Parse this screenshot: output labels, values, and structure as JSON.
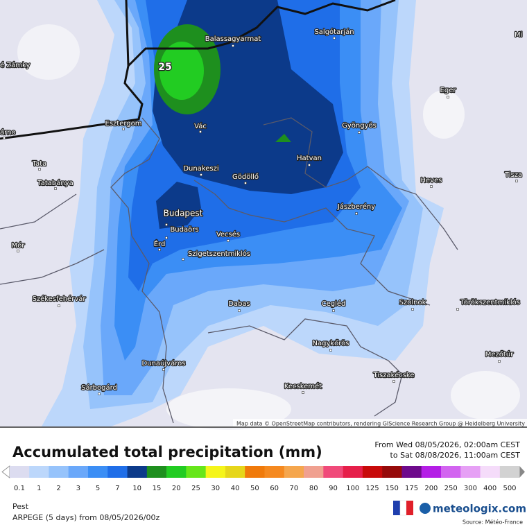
{
  "map": {
    "labels": [
      "é Zámky",
      "árno",
      "Balassagyarmat",
      "Salgótarján",
      "Eger",
      "Gyöngyös",
      "Esztergom",
      "Vác",
      "Hatvan",
      "Dunakeszi",
      "Gödöllő",
      "Tata",
      "Tatabánya",
      "Heves",
      "Jászberény",
      "Budapest",
      "Budaörs",
      "Vecsés",
      "Érd",
      "Szigetszentmiklós",
      "Mór",
      "Székesfehérvár",
      "Dabas",
      "Cegléd",
      "Szolnok",
      "Törökszentmiklós",
      "Nagykőrös",
      "Mezőtúr",
      "Dunaújváros",
      "Tiszakécske",
      "Sárbogárd",
      "Kecskemét",
      "Mi",
      "Tisza"
    ],
    "contour_label": "25",
    "attribution": "Map data © OpenStreetMap contributors, rendering GIScience Research Group @ Heidelberg University"
  },
  "legend": {
    "title": "Accumulated total precipitation (mm)",
    "period": [
      "From Wed 08/05/2026, 02:00am CEST",
      "to Sat 08/08/2026, 11:00am CEST"
    ],
    "ticks": [
      {
        "label": "0.1",
        "color": "#dcdcf0"
      },
      {
        "label": "1",
        "color": "#bcd7fb"
      },
      {
        "label": "2",
        "color": "#96c3fb"
      },
      {
        "label": "3",
        "color": "#6aa8fa"
      },
      {
        "label": "5",
        "color": "#3b8ef5"
      },
      {
        "label": "7",
        "color": "#1f6ee8"
      },
      {
        "label": "10",
        "color": "#0c3a8a"
      },
      {
        "label": "15",
        "color": "#1e8f1e"
      },
      {
        "label": "20",
        "color": "#22cc22"
      },
      {
        "label": "25",
        "color": "#66e61a"
      },
      {
        "label": "30",
        "color": "#f5f51a"
      },
      {
        "label": "40",
        "color": "#e6d61a"
      },
      {
        "label": "50",
        "color": "#f07a0a"
      },
      {
        "label": "60",
        "color": "#f5891f"
      },
      {
        "label": "70",
        "color": "#f5a64d"
      },
      {
        "label": "80",
        "color": "#f0a090"
      },
      {
        "label": "90",
        "color": "#f04a7a"
      },
      {
        "label": "100",
        "color": "#e61f4a"
      },
      {
        "label": "125",
        "color": "#c80a0a"
      },
      {
        "label": "150",
        "color": "#960a0a"
      },
      {
        "label": "175",
        "color": "#6e0a8c"
      },
      {
        "label": "200",
        "color": "#b41ee6"
      },
      {
        "label": "250",
        "color": "#d264f0"
      },
      {
        "label": "300",
        "color": "#e6a0f5"
      },
      {
        "label": "400",
        "color": "#f5dcfa"
      },
      {
        "label": "500",
        "color": "#d2d2d2"
      }
    ]
  },
  "footer": {
    "region": "Pest",
    "model": "ARPEGE (5 days) from 08/05/2026/00z",
    "brand": "meteologix.com",
    "source": "Source: Météo-France"
  }
}
